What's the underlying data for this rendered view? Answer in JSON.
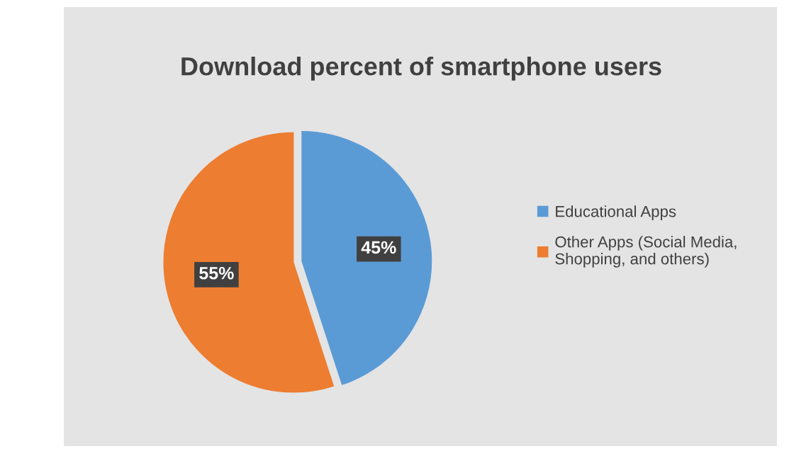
{
  "chart_data": {
    "type": "pie",
    "title": "Download percent of smartphone users",
    "categories": [
      "Educational Apps",
      "Other Apps (Social Media,\nShopping, and others)"
    ],
    "values": [
      45,
      55
    ],
    "colors": [
      "#5b9bd5",
      "#ed7d31"
    ],
    "value_labels": [
      "45%",
      "55%"
    ],
    "legend": "right"
  }
}
